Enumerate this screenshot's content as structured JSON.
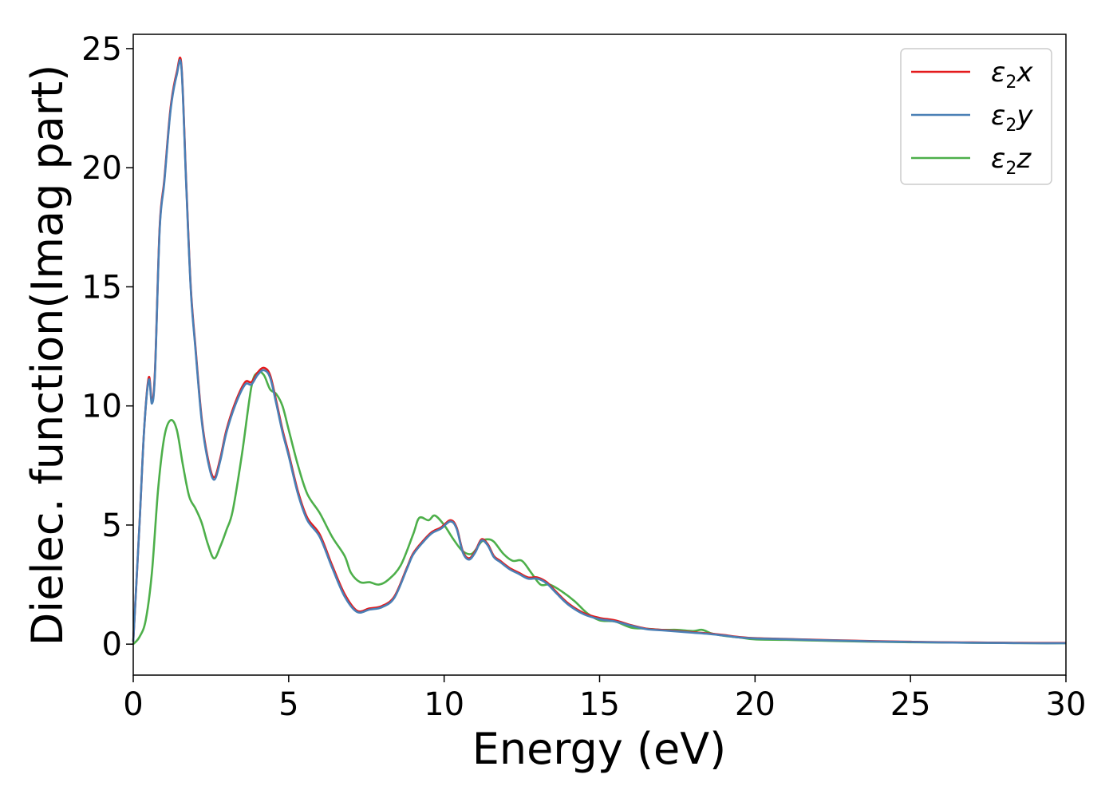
{
  "chart_data": {
    "type": "line",
    "xlabel": "Energy (eV)",
    "ylabel": "Dielec. function(Imag part)",
    "xlim": [
      0,
      30
    ],
    "ylim": [
      -1.3,
      25.6
    ],
    "xticks": [
      0,
      5,
      10,
      15,
      20,
      25,
      30
    ],
    "yticks": [
      0,
      5,
      10,
      15,
      20,
      25
    ],
    "grid": false,
    "legend_position": "top-right",
    "series": [
      {
        "name": "ε2x",
        "legend": {
          "base": "ε",
          "sub": "2",
          "tail": "x"
        },
        "color": "#e41a1c",
        "x": [
          0,
          0.2,
          0.35,
          0.5,
          0.6,
          0.7,
          0.85,
          1.0,
          1.2,
          1.4,
          1.55,
          1.7,
          1.85,
          2.0,
          2.2,
          2.4,
          2.6,
          2.8,
          3.0,
          3.3,
          3.6,
          3.8,
          4.0,
          4.2,
          4.4,
          4.6,
          4.8,
          5.0,
          5.3,
          5.6,
          6.0,
          6.4,
          6.8,
          7.2,
          7.6,
          8.0,
          8.4,
          8.8,
          9.0,
          9.3,
          9.6,
          9.9,
          10.2,
          10.4,
          10.6,
          10.8,
          11.0,
          11.2,
          11.4,
          11.6,
          11.8,
          12.1,
          12.4,
          12.7,
          13.0,
          13.3,
          13.6,
          14.0,
          14.5,
          15.0,
          15.5,
          16.0,
          16.5,
          17.0,
          17.5,
          18.0,
          18.5,
          19.0,
          19.5,
          20.0,
          21.0,
          22.0,
          23.0,
          24.0,
          25.0,
          26.0,
          27.0,
          28.0,
          29.0,
          30.0
        ],
        "values": [
          0.1,
          5.0,
          9.0,
          11.2,
          10.2,
          11.5,
          17.5,
          19.5,
          22.5,
          24.0,
          24.3,
          19.5,
          15.0,
          12.5,
          9.5,
          7.8,
          7.0,
          7.8,
          9.0,
          10.2,
          11.0,
          11.0,
          11.4,
          11.6,
          11.3,
          10.2,
          9.0,
          8.0,
          6.4,
          5.3,
          4.6,
          3.3,
          2.1,
          1.4,
          1.5,
          1.6,
          2.0,
          3.2,
          3.8,
          4.3,
          4.7,
          4.9,
          5.2,
          4.9,
          3.9,
          3.6,
          3.9,
          4.4,
          4.2,
          3.7,
          3.5,
          3.2,
          3.0,
          2.8,
          2.8,
          2.6,
          2.2,
          1.7,
          1.3,
          1.1,
          1.0,
          0.8,
          0.65,
          0.6,
          0.55,
          0.5,
          0.45,
          0.38,
          0.3,
          0.25,
          0.22,
          0.18,
          0.15,
          0.12,
          0.1,
          0.08,
          0.07,
          0.06,
          0.05,
          0.05
        ]
      },
      {
        "name": "ε2y",
        "legend": {
          "base": "ε",
          "sub": "2",
          "tail": "y"
        },
        "color": "#4a7fb5",
        "x": [
          0,
          0.2,
          0.35,
          0.5,
          0.6,
          0.7,
          0.85,
          1.0,
          1.2,
          1.4,
          1.55,
          1.7,
          1.85,
          2.0,
          2.2,
          2.4,
          2.6,
          2.8,
          3.0,
          3.3,
          3.6,
          3.8,
          4.0,
          4.2,
          4.4,
          4.6,
          4.8,
          5.0,
          5.3,
          5.6,
          6.0,
          6.4,
          6.8,
          7.2,
          7.6,
          8.0,
          8.4,
          8.8,
          9.0,
          9.3,
          9.6,
          9.9,
          10.2,
          10.4,
          10.6,
          10.8,
          11.0,
          11.2,
          11.4,
          11.6,
          11.8,
          12.1,
          12.4,
          12.7,
          13.0,
          13.3,
          13.6,
          14.0,
          14.5,
          15.0,
          15.5,
          16.0,
          16.5,
          17.0,
          17.5,
          18.0,
          18.5,
          19.0,
          19.5,
          20.0,
          21.0,
          22.0,
          23.0,
          24.0,
          25.0,
          26.0,
          27.0,
          28.0,
          29.0,
          30.0
        ],
        "values": [
          0.1,
          5.0,
          9.0,
          11.1,
          10.1,
          11.4,
          17.4,
          19.4,
          22.4,
          23.9,
          24.2,
          19.4,
          14.9,
          12.4,
          9.4,
          7.7,
          6.9,
          7.7,
          8.9,
          10.1,
          10.9,
          10.9,
          11.3,
          11.5,
          11.2,
          10.1,
          8.9,
          7.9,
          6.3,
          5.2,
          4.5,
          3.2,
          2.0,
          1.35,
          1.45,
          1.55,
          1.95,
          3.15,
          3.75,
          4.25,
          4.65,
          4.85,
          5.15,
          4.85,
          3.85,
          3.55,
          3.85,
          4.35,
          4.15,
          3.65,
          3.45,
          3.15,
          2.95,
          2.75,
          2.75,
          2.55,
          2.15,
          1.65,
          1.25,
          1.05,
          0.95,
          0.78,
          0.63,
          0.58,
          0.53,
          0.48,
          0.43,
          0.36,
          0.28,
          0.24,
          0.21,
          0.17,
          0.14,
          0.11,
          0.09,
          0.07,
          0.06,
          0.05,
          0.04,
          0.04
        ]
      },
      {
        "name": "ε2z",
        "legend": {
          "base": "ε",
          "sub": "2",
          "tail": "z"
        },
        "color": "#4daf4a",
        "x": [
          0,
          0.2,
          0.4,
          0.6,
          0.8,
          1.0,
          1.2,
          1.4,
          1.6,
          1.8,
          2.0,
          2.2,
          2.4,
          2.6,
          2.8,
          3.0,
          3.2,
          3.5,
          3.8,
          4.0,
          4.2,
          4.4,
          4.6,
          4.8,
          5.0,
          5.3,
          5.6,
          6.0,
          6.4,
          6.8,
          7.0,
          7.3,
          7.6,
          7.9,
          8.2,
          8.6,
          9.0,
          9.2,
          9.5,
          9.7,
          10.0,
          10.3,
          10.6,
          10.9,
          11.2,
          11.4,
          11.6,
          11.9,
          12.2,
          12.5,
          12.8,
          13.1,
          13.4,
          13.8,
          14.2,
          14.6,
          15.0,
          15.5,
          16.0,
          16.5,
          17.0,
          17.5,
          18.0,
          18.3,
          18.6,
          19.0,
          19.5,
          20.0,
          21.0,
          22.0,
          23.0,
          24.0,
          25.0,
          26.0,
          27.0,
          28.0,
          29.0,
          30.0
        ],
        "values": [
          0.0,
          0.3,
          1.0,
          3.0,
          6.5,
          8.7,
          9.4,
          9.0,
          7.5,
          6.2,
          5.7,
          5.1,
          4.2,
          3.6,
          4.1,
          4.8,
          5.6,
          8.0,
          10.8,
          11.4,
          11.3,
          10.7,
          10.5,
          10.0,
          9.0,
          7.5,
          6.3,
          5.5,
          4.5,
          3.7,
          3.0,
          2.6,
          2.6,
          2.5,
          2.7,
          3.3,
          4.6,
          5.3,
          5.2,
          5.4,
          5.0,
          4.4,
          3.9,
          3.8,
          4.3,
          4.4,
          4.3,
          3.8,
          3.5,
          3.5,
          3.0,
          2.5,
          2.5,
          2.2,
          1.8,
          1.3,
          1.0,
          0.95,
          0.7,
          0.65,
          0.6,
          0.6,
          0.55,
          0.6,
          0.45,
          0.35,
          0.28,
          0.2,
          0.18,
          0.15,
          0.12,
          0.1,
          0.08,
          0.07,
          0.06,
          0.05,
          0.04,
          0.04
        ]
      }
    ]
  }
}
